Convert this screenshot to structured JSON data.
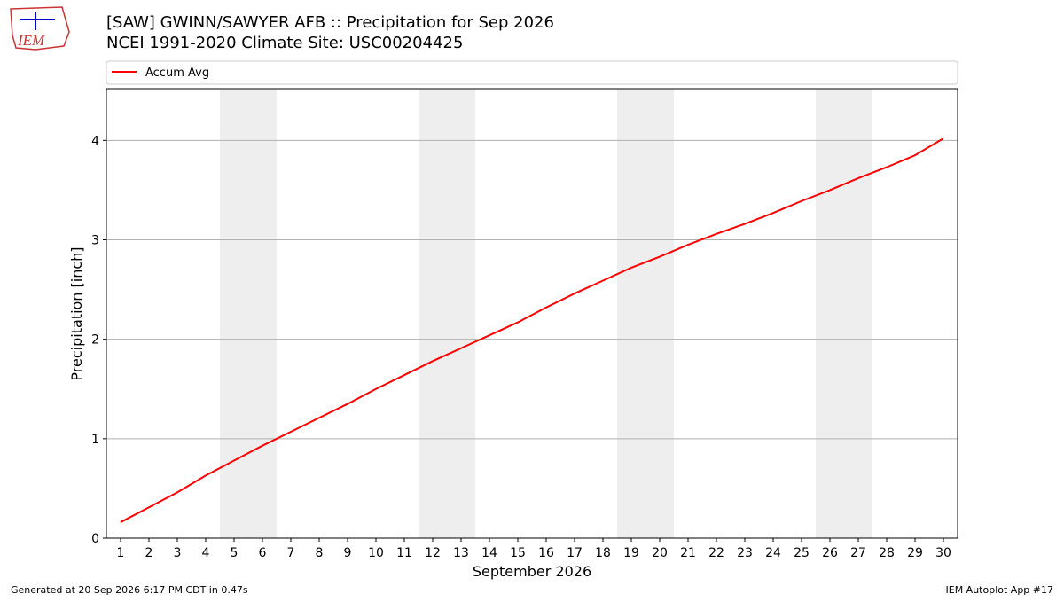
{
  "logo_text": "IEM",
  "chart_data": {
    "type": "line",
    "title": "[SAW] GWINN/SAWYER AFB :: Precipitation for Sep 2026",
    "subtitle": "NCEI 1991-2020 Climate Site: USC00204425",
    "x_label": "September 2026",
    "y_label": "Precipitation [inch]",
    "x": [
      1,
      2,
      3,
      4,
      5,
      6,
      7,
      8,
      9,
      10,
      11,
      12,
      13,
      14,
      15,
      16,
      17,
      18,
      19,
      20,
      21,
      22,
      23,
      24,
      25,
      26,
      27,
      28,
      29,
      30
    ],
    "series": [
      {
        "name": "Accum Avg",
        "color": "#ff0000",
        "values": [
          0.16,
          0.31,
          0.46,
          0.63,
          0.78,
          0.93,
          1.07,
          1.21,
          1.35,
          1.5,
          1.64,
          1.78,
          1.91,
          2.04,
          2.17,
          2.32,
          2.46,
          2.59,
          2.72,
          2.83,
          2.95,
          3.06,
          3.16,
          3.27,
          3.39,
          3.5,
          3.62,
          3.73,
          3.85,
          4.02
        ]
      }
    ],
    "xlim": [
      0.5,
      30.5
    ],
    "ylim": [
      0,
      4.52
    ],
    "xticks": [
      1,
      2,
      3,
      4,
      5,
      6,
      7,
      8,
      9,
      10,
      11,
      12,
      13,
      14,
      15,
      16,
      17,
      18,
      19,
      20,
      21,
      22,
      23,
      24,
      25,
      26,
      27,
      28,
      29,
      30
    ],
    "yticks": [
      0,
      1,
      2,
      3,
      4
    ],
    "shaded_spans": [
      [
        4.5,
        6.5
      ],
      [
        11.5,
        13.5
      ],
      [
        18.5,
        20.5
      ],
      [
        25.5,
        27.5
      ]
    ],
    "shade_color": "#eeeeee",
    "grid": true,
    "legend": "top"
  },
  "footer_left": "Generated at 20 Sep 2026 6:17 PM CDT in 0.47s",
  "footer_right": "IEM Autoplot App #17"
}
